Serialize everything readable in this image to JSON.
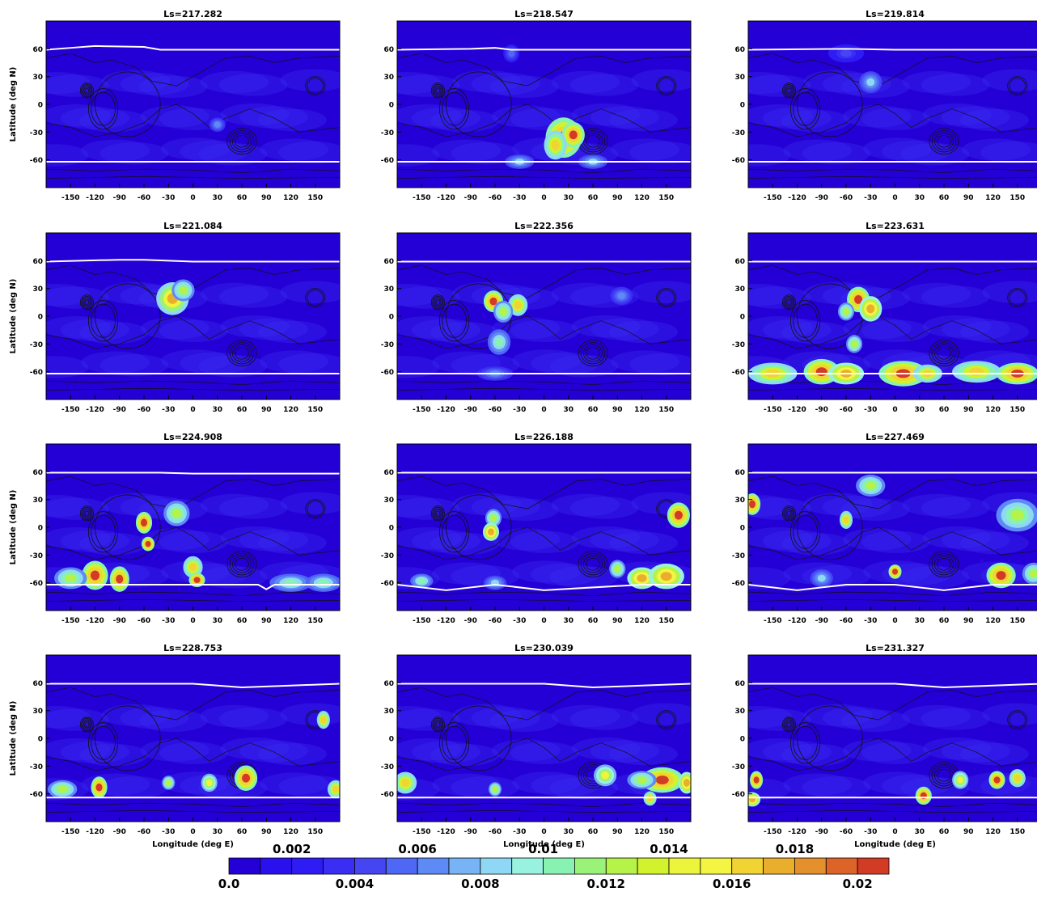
{
  "chart_data": {
    "type": "heatmap",
    "panels": [
      {
        "title": "Ls=217.282",
        "north_edge": [
          [
            -180,
            59
          ],
          [
            -150,
            61
          ],
          [
            -120,
            63
          ],
          [
            -60,
            62
          ],
          [
            -40,
            59
          ],
          [
            0,
            59
          ],
          [
            60,
            59
          ],
          [
            120,
            59
          ],
          [
            180,
            59
          ]
        ],
        "south_edge": [
          [
            -180,
            -62
          ],
          [
            0,
            -62
          ],
          [
            180,
            -62
          ]
        ],
        "blobs": [
          [
            30,
            -22,
            4,
            3,
            0.006
          ]
        ]
      },
      {
        "title": "Ls=218.547",
        "north_edge": [
          [
            -180,
            59
          ],
          [
            -90,
            60
          ],
          [
            -60,
            61
          ],
          [
            -40,
            59
          ],
          [
            60,
            59
          ],
          [
            180,
            59
          ]
        ],
        "south_edge": [
          [
            -180,
            -62
          ],
          [
            180,
            -62
          ]
        ],
        "blobs": [
          [
            -40,
            55,
            4,
            4,
            0.005
          ],
          [
            24,
            -36,
            10,
            10,
            0.02
          ],
          [
            36,
            -33,
            6,
            6,
            0.02
          ],
          [
            14,
            -44,
            6,
            7,
            0.016
          ],
          [
            -30,
            -62,
            8,
            3,
            0.008
          ],
          [
            60,
            -62,
            8,
            3,
            0.008
          ]
        ]
      },
      {
        "title": "Ls=219.814",
        "north_edge": [
          [
            -180,
            59
          ],
          [
            -60,
            60
          ],
          [
            0,
            59
          ],
          [
            180,
            59
          ]
        ],
        "south_edge": [
          [
            -180,
            -62
          ],
          [
            180,
            -62
          ]
        ],
        "blobs": [
          [
            -30,
            24,
            6,
            5,
            0.008
          ],
          [
            -60,
            55,
            10,
            4,
            0.004
          ]
        ]
      },
      {
        "title": "Ls=221.084",
        "north_edge": [
          [
            -180,
            59
          ],
          [
            -90,
            61
          ],
          [
            -60,
            61
          ],
          [
            0,
            59
          ],
          [
            180,
            59
          ]
        ],
        "south_edge": [
          [
            -180,
            -62
          ],
          [
            180,
            -62
          ]
        ],
        "blobs": [
          [
            -25,
            19,
            9,
            8,
            0.017
          ],
          [
            -12,
            28,
            6,
            5,
            0.012
          ]
        ]
      },
      {
        "title": "Ls=222.356",
        "north_edge": [
          [
            -180,
            59
          ],
          [
            0,
            59
          ],
          [
            180,
            59
          ]
        ],
        "south_edge": [
          [
            -180,
            -62
          ],
          [
            180,
            -62
          ]
        ],
        "blobs": [
          [
            -62,
            16,
            5,
            5,
            0.02
          ],
          [
            -32,
            12,
            5,
            5,
            0.016
          ],
          [
            -50,
            5,
            5,
            5,
            0.013
          ],
          [
            -55,
            -28,
            6,
            6,
            0.01
          ],
          [
            95,
            22,
            6,
            4,
            0.006
          ],
          [
            -60,
            -62,
            10,
            3,
            0.006
          ]
        ]
      },
      {
        "title": "Ls=223.631",
        "north_edge": [
          [
            -180,
            59
          ],
          [
            0,
            59
          ],
          [
            180,
            59
          ]
        ],
        "south_edge": [
          [
            -180,
            -62
          ],
          [
            180,
            -62
          ]
        ],
        "blobs": [
          [
            -45,
            18,
            6,
            6,
            0.02
          ],
          [
            -30,
            8,
            6,
            6,
            0.018
          ],
          [
            -60,
            5,
            4,
            4,
            0.012
          ],
          [
            -50,
            -30,
            4,
            4,
            0.012
          ],
          [
            -150,
            -62,
            14,
            5,
            0.016
          ],
          [
            -90,
            -60,
            10,
            6,
            0.02
          ],
          [
            -60,
            -62,
            10,
            5,
            0.018
          ],
          [
            10,
            -62,
            14,
            6,
            0.02
          ],
          [
            40,
            -62,
            8,
            4,
            0.016
          ],
          [
            100,
            -60,
            14,
            5,
            0.016
          ],
          [
            150,
            -62,
            12,
            5,
            0.02
          ]
        ]
      },
      {
        "title": "Ls=224.908",
        "north_edge": [
          [
            -180,
            59
          ],
          [
            -40,
            59
          ],
          [
            0,
            58
          ],
          [
            180,
            58
          ]
        ],
        "south_edge": [
          [
            -180,
            -62
          ],
          [
            80,
            -62
          ],
          [
            90,
            -67
          ],
          [
            100,
            -62
          ],
          [
            180,
            -62
          ]
        ],
        "blobs": [
          [
            -120,
            -52,
            7,
            7,
            0.02
          ],
          [
            -150,
            -55,
            9,
            5,
            0.013
          ],
          [
            -90,
            -56,
            5,
            6,
            0.02
          ],
          [
            -60,
            5,
            4,
            5,
            0.02
          ],
          [
            -55,
            -18,
            3,
            3,
            0.02
          ],
          [
            0,
            -43,
            5,
            5,
            0.016
          ],
          [
            5,
            -57,
            4,
            3,
            0.02
          ],
          [
            -20,
            15,
            7,
            6,
            0.013
          ],
          [
            120,
            -60,
            12,
            4,
            0.01
          ],
          [
            160,
            -60,
            10,
            4,
            0.01
          ]
        ]
      },
      {
        "title": "Ls=226.188",
        "north_edge": [
          [
            -180,
            59
          ],
          [
            0,
            59
          ],
          [
            180,
            59
          ]
        ],
        "south_edge": [
          [
            -180,
            -62
          ],
          [
            -120,
            -68
          ],
          [
            -60,
            -62
          ],
          [
            0,
            -68
          ],
          [
            120,
            -62
          ],
          [
            180,
            -62
          ]
        ],
        "blobs": [
          [
            165,
            13,
            6,
            6,
            0.02
          ],
          [
            -62,
            10,
            4,
            4,
            0.012
          ],
          [
            -65,
            -5,
            4,
            4,
            0.018
          ],
          [
            120,
            -55,
            8,
            5,
            0.018
          ],
          [
            150,
            -53,
            10,
            6,
            0.018
          ],
          [
            90,
            -45,
            4,
            4,
            0.012
          ],
          [
            -150,
            -58,
            6,
            3,
            0.01
          ],
          [
            -60,
            -60,
            6,
            3,
            0.008
          ]
        ]
      },
      {
        "title": "Ls=227.469",
        "north_edge": [
          [
            -180,
            59
          ],
          [
            180,
            59
          ]
        ],
        "south_edge": [
          [
            -180,
            -62
          ],
          [
            -120,
            -68
          ],
          [
            -60,
            -62
          ],
          [
            0,
            -62
          ],
          [
            60,
            -68
          ],
          [
            120,
            -62
          ],
          [
            180,
            -62
          ]
        ],
        "blobs": [
          [
            -175,
            25,
            4,
            5,
            0.02
          ],
          [
            -30,
            45,
            8,
            5,
            0.012
          ],
          [
            -60,
            8,
            3,
            4,
            0.016
          ],
          [
            150,
            13,
            12,
            8,
            0.013
          ],
          [
            130,
            -52,
            8,
            6,
            0.02
          ],
          [
            0,
            -48,
            3,
            3,
            0.02
          ],
          [
            170,
            -50,
            6,
            5,
            0.013
          ],
          [
            -90,
            -55,
            6,
            4,
            0.008
          ]
        ]
      },
      {
        "title": "Ls=228.753",
        "north_edge": [
          [
            -180,
            59
          ],
          [
            0,
            59
          ],
          [
            60,
            55
          ],
          [
            120,
            57
          ],
          [
            180,
            59
          ]
        ],
        "south_edge": [
          [
            -180,
            -64
          ],
          [
            0,
            -64
          ],
          [
            60,
            -64
          ],
          [
            120,
            -64
          ],
          [
            180,
            -64
          ]
        ],
        "blobs": [
          [
            65,
            -43,
            6,
            6,
            0.02
          ],
          [
            160,
            20,
            3,
            4,
            0.016
          ],
          [
            -115,
            -53,
            4,
            5,
            0.02
          ],
          [
            -160,
            -55,
            8,
            4,
            0.013
          ],
          [
            175,
            -55,
            4,
            4,
            0.016
          ],
          [
            20,
            -48,
            4,
            4,
            0.014
          ],
          [
            -30,
            -48,
            3,
            3,
            0.012
          ]
        ]
      },
      {
        "title": "Ls=230.039",
        "north_edge": [
          [
            -180,
            59
          ],
          [
            0,
            59
          ],
          [
            60,
            55
          ],
          [
            120,
            57
          ],
          [
            180,
            59
          ]
        ],
        "south_edge": [
          [
            -180,
            -64
          ],
          [
            180,
            -64
          ]
        ],
        "blobs": [
          [
            145,
            -45,
            12,
            6,
            0.02
          ],
          [
            175,
            -48,
            4,
            5,
            0.018
          ],
          [
            -170,
            -48,
            6,
            5,
            0.016
          ],
          [
            75,
            -40,
            6,
            5,
            0.014
          ],
          [
            120,
            -45,
            8,
            4,
            0.012
          ],
          [
            -60,
            -55,
            3,
            3,
            0.012
          ],
          [
            130,
            -65,
            3,
            3,
            0.016
          ]
        ]
      },
      {
        "title": "Ls=231.327",
        "north_edge": [
          [
            -180,
            59
          ],
          [
            0,
            59
          ],
          [
            60,
            55
          ],
          [
            120,
            57
          ],
          [
            180,
            59
          ]
        ],
        "south_edge": [
          [
            -180,
            -64
          ],
          [
            180,
            -64
          ]
        ],
        "blobs": [
          [
            125,
            -45,
            4,
            4,
            0.02
          ],
          [
            150,
            -43,
            4,
            4,
            0.016
          ],
          [
            -170,
            -45,
            3,
            4,
            0.02
          ],
          [
            35,
            -62,
            4,
            4,
            0.02
          ],
          [
            80,
            -45,
            4,
            4,
            0.014
          ],
          [
            -175,
            -66,
            4,
            3,
            0.018
          ]
        ]
      }
    ],
    "xlabel": "Longitude (deg E)",
    "ylabel": "Latitude (deg N)",
    "xticks": [
      -150,
      -120,
      -90,
      -60,
      -30,
      0,
      30,
      60,
      90,
      120,
      150
    ],
    "yticks": [
      60,
      30,
      0,
      -30,
      -60
    ],
    "xlim": [
      -180,
      180
    ],
    "ylim": [
      -90,
      90
    ],
    "colorbar": {
      "min": 0.0,
      "max": 0.021,
      "levels": 21,
      "labels_top": [
        "0.002",
        "0.006",
        "0.01",
        "0.014",
        "0.018"
      ],
      "labels_bottom": [
        "0.0",
        "0.004",
        "0.008",
        "0.012",
        "0.016",
        "0.02"
      ],
      "colors": [
        "#2400d6",
        "#2b10ee",
        "#2f1bf3",
        "#3b2ef4",
        "#4545f2",
        "#4f67f5",
        "#5e8af5",
        "#78b3f5",
        "#8fd8f5",
        "#99f2df",
        "#88f2b3",
        "#9bf279",
        "#b5f24a",
        "#d2f22e",
        "#ecf43c",
        "#f4f442",
        "#f1d334",
        "#e8ae2c",
        "#e4902c",
        "#dd6428",
        "#d23b24"
      ]
    }
  }
}
